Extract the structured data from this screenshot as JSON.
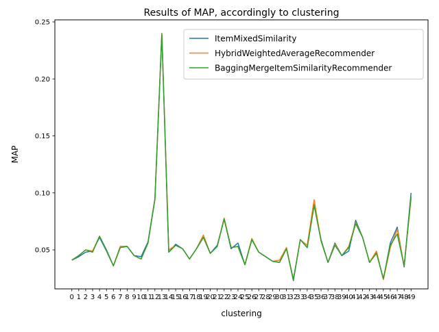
{
  "chart_data": {
    "type": "line",
    "title": "Results of MAP, accordingly to clustering",
    "xlabel": "clustering",
    "ylabel": "MAP",
    "xlim": [
      -2.45,
      51.45
    ],
    "ylim": [
      0.0158,
      0.2518
    ],
    "x_ticks": [
      0,
      1,
      2,
      3,
      4,
      5,
      6,
      7,
      8,
      9,
      10,
      11,
      12,
      13,
      14,
      15,
      16,
      17,
      18,
      19,
      20,
      21,
      22,
      23,
      24,
      25,
      26,
      27,
      28,
      29,
      30,
      31,
      32,
      33,
      34,
      35,
      36,
      37,
      38,
      39,
      40,
      41,
      42,
      43,
      44,
      45,
      46,
      47,
      48,
      49
    ],
    "y_ticks": [
      0.05,
      0.1,
      0.15,
      0.2,
      0.25
    ],
    "y_tick_labels": [
      "0.05",
      "0.10",
      "0.15",
      "0.20",
      "0.25"
    ],
    "grid": false,
    "legend_position": "top-right",
    "x": [
      0,
      1,
      2,
      3,
      4,
      5,
      6,
      7,
      8,
      9,
      10,
      11,
      12,
      13,
      14,
      15,
      16,
      17,
      18,
      19,
      20,
      21,
      22,
      23,
      24,
      25,
      26,
      27,
      28,
      29,
      30,
      31,
      32,
      33,
      34,
      35,
      36,
      37,
      38,
      39,
      40,
      41,
      42,
      43,
      44,
      45,
      46,
      47,
      48,
      49
    ],
    "series": [
      {
        "name": "ItemMixedSimilarity",
        "color": "#1f77b4",
        "values": [
          0.041,
          0.044,
          0.048,
          0.049,
          0.061,
          0.049,
          0.036,
          0.053,
          0.053,
          0.045,
          0.044,
          0.057,
          0.095,
          0.24,
          0.048,
          0.055,
          0.051,
          0.042,
          0.051,
          0.061,
          0.047,
          0.054,
          0.077,
          0.051,
          0.056,
          0.037,
          0.059,
          0.048,
          0.044,
          0.04,
          0.039,
          0.052,
          0.023,
          0.059,
          0.052,
          0.09,
          0.059,
          0.039,
          0.056,
          0.045,
          0.049,
          0.076,
          0.061,
          0.039,
          0.048,
          0.024,
          0.056,
          0.07,
          0.035,
          0.1
        ]
      },
      {
        "name": "HybridWeightedAverageRecommender",
        "color": "#ff7f0e",
        "values": [
          0.041,
          0.045,
          0.05,
          0.049,
          0.062,
          0.05,
          0.036,
          0.053,
          0.053,
          0.045,
          0.042,
          0.056,
          0.095,
          0.24,
          0.05,
          0.054,
          0.051,
          0.042,
          0.051,
          0.063,
          0.047,
          0.053,
          0.078,
          0.052,
          0.053,
          0.037,
          0.06,
          0.048,
          0.044,
          0.04,
          0.041,
          0.052,
          0.024,
          0.059,
          0.054,
          0.094,
          0.058,
          0.039,
          0.055,
          0.045,
          0.053,
          0.074,
          0.061,
          0.039,
          0.049,
          0.024,
          0.052,
          0.068,
          0.036,
          0.095
        ]
      },
      {
        "name": "BaggingMergeItemSimilarityRecommender",
        "color": "#2ca02c",
        "values": [
          0.041,
          0.045,
          0.05,
          0.048,
          0.062,
          0.05,
          0.036,
          0.052,
          0.053,
          0.045,
          0.042,
          0.056,
          0.094,
          0.239,
          0.048,
          0.054,
          0.051,
          0.042,
          0.051,
          0.061,
          0.047,
          0.053,
          0.077,
          0.052,
          0.053,
          0.037,
          0.059,
          0.048,
          0.044,
          0.04,
          0.039,
          0.051,
          0.024,
          0.059,
          0.052,
          0.089,
          0.058,
          0.039,
          0.054,
          0.045,
          0.052,
          0.073,
          0.061,
          0.039,
          0.047,
          0.025,
          0.054,
          0.064,
          0.036,
          0.097
        ]
      }
    ]
  }
}
